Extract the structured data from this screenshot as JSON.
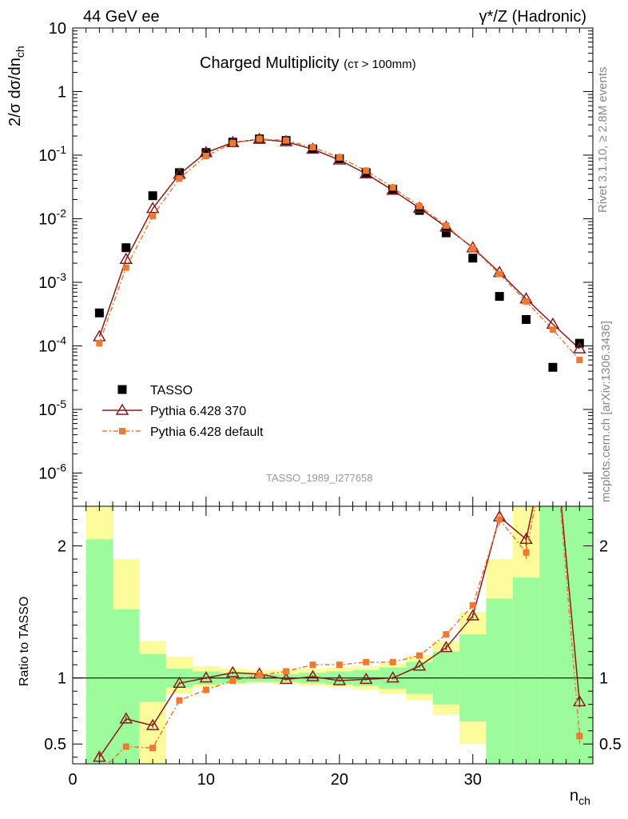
{
  "header": {
    "left": "44 GeV ee",
    "right": "γ*/Z (Hadronic)"
  },
  "side_text": {
    "rivet": "Rivet 3.1.10, ≥ 2.8M events",
    "mcplots": "mcplots.cern.ch [arXiv:1306.3436]"
  },
  "chart_data": [
    {
      "type": "scatter",
      "title": "Charged Multiplicity",
      "title_sub": "(cτ > 100mm)",
      "ylabel": "2/σ dσ/dn_ch",
      "ylabel_main": "2/σ dσ/dn",
      "ylabel_sub": "ch",
      "yscale": "log",
      "xlim": [
        0,
        39
      ],
      "ylim": [
        3e-07,
        10
      ],
      "ytick_labels": [
        "10",
        "1",
        "10^-1",
        "10^-2",
        "10^-3",
        "10^-4",
        "10^-5",
        "10^-6"
      ],
      "ytick_values": [
        10,
        1,
        0.1,
        0.01,
        0.001,
        0.0001,
        1e-05,
        1e-06
      ],
      "legend_position": "lower-left",
      "watermark": "TASSO_1989_I277658",
      "x": [
        2,
        4,
        6,
        8,
        10,
        12,
        14,
        16,
        18,
        20,
        22,
        24,
        26,
        28,
        30,
        32,
        34,
        36,
        38
      ],
      "series": [
        {
          "name": "TASSO",
          "color": "#000000",
          "marker": "square",
          "values": [
            0.00033,
            0.0035,
            0.023,
            0.053,
            0.11,
            0.16,
            0.18,
            0.17,
            0.125,
            0.088,
            0.053,
            0.029,
            0.0135,
            0.006,
            0.0024,
            0.0006,
            0.00026,
            4.6e-05,
            0.00011
          ]
        },
        {
          "name": "Pythia 6.428 370",
          "color": "#8b1a1a",
          "marker": "open-triangle",
          "values": [
            0.00014,
            0.0023,
            0.0145,
            0.05,
            0.11,
            0.158,
            0.178,
            0.163,
            0.124,
            0.084,
            0.051,
            0.028,
            0.0147,
            0.0074,
            0.0035,
            0.00143,
            0.00055,
            0.00022,
            9e-05
          ]
        },
        {
          "name": "Pythia 6.428 default",
          "color": "#f07830",
          "marker": "square",
          "values": [
            0.00011,
            0.0017,
            0.011,
            0.043,
            0.097,
            0.155,
            0.18,
            0.17,
            0.133,
            0.092,
            0.057,
            0.031,
            0.0158,
            0.0078,
            0.0034,
            0.00135,
            0.0005,
            0.00018,
            6e-05
          ]
        }
      ]
    },
    {
      "type": "line",
      "ylabel": "Ratio to TASSO",
      "xlabel": "n_ch",
      "xlabel_main": "n",
      "xlabel_sub": "ch",
      "xlim": [
        0,
        39
      ],
      "ylim": [
        0.35,
        2.3
      ],
      "xtick_labels": [
        "0",
        "10",
        "20",
        "30"
      ],
      "xtick_values": [
        0,
        10,
        20,
        30
      ],
      "ytick_labels": [
        "0.5",
        "1",
        "2"
      ],
      "ytick_values": [
        0.5,
        1,
        2
      ],
      "reference_line": 1,
      "bands": [
        {
          "name": "stat",
          "color": "#9cfc9c",
          "bins": [
            {
              "lo": 1,
              "hi": 3,
              "min": 0.35,
              "max": 2.05
            },
            {
              "lo": 3,
              "hi": 5,
              "min": 0.35,
              "max": 1.52
            },
            {
              "lo": 5,
              "hi": 7,
              "min": 0.82,
              "max": 1.18
            },
            {
              "lo": 7,
              "hi": 9,
              "min": 0.93,
              "max": 1.07
            },
            {
              "lo": 9,
              "hi": 11,
              "min": 0.95,
              "max": 1.05
            },
            {
              "lo": 11,
              "hi": 13,
              "min": 0.96,
              "max": 1.04
            },
            {
              "lo": 13,
              "hi": 15,
              "min": 0.97,
              "max": 1.03
            },
            {
              "lo": 15,
              "hi": 17,
              "min": 0.97,
              "max": 1.03
            },
            {
              "lo": 17,
              "hi": 19,
              "min": 0.96,
              "max": 1.04
            },
            {
              "lo": 19,
              "hi": 21,
              "min": 0.95,
              "max": 1.05
            },
            {
              "lo": 21,
              "hi": 23,
              "min": 0.94,
              "max": 1.06
            },
            {
              "lo": 23,
              "hi": 25,
              "min": 0.92,
              "max": 1.08
            },
            {
              "lo": 25,
              "hi": 27,
              "min": 0.88,
              "max": 1.12
            },
            {
              "lo": 27,
              "hi": 29,
              "min": 0.8,
              "max": 1.2
            },
            {
              "lo": 29,
              "hi": 31,
              "min": 0.67,
              "max": 1.33
            },
            {
              "lo": 31,
              "hi": 33,
              "min": 0.35,
              "max": 1.6
            },
            {
              "lo": 33,
              "hi": 35,
              "min": 0.35,
              "max": 1.76
            },
            {
              "lo": 35,
              "hi": 37,
              "min": 0.35,
              "max": 2.3
            },
            {
              "lo": 37,
              "hi": 39,
              "min": 0.35,
              "max": 2.3
            }
          ]
        },
        {
          "name": "total",
          "color": "#fcfc9c",
          "bins": [
            {
              "lo": 1,
              "hi": 3,
              "min": 0.35,
              "max": 2.3
            },
            {
              "lo": 3,
              "hi": 5,
              "min": 0.35,
              "max": 1.9
            },
            {
              "lo": 5,
              "hi": 7,
              "min": 0.35,
              "max": 1.28
            },
            {
              "lo": 7,
              "hi": 9,
              "min": 0.88,
              "max": 1.16
            },
            {
              "lo": 9,
              "hi": 11,
              "min": 0.93,
              "max": 1.09
            },
            {
              "lo": 11,
              "hi": 13,
              "min": 0.95,
              "max": 1.07
            },
            {
              "lo": 13,
              "hi": 15,
              "min": 0.96,
              "max": 1.06
            },
            {
              "lo": 15,
              "hi": 17,
              "min": 0.95,
              "max": 1.06
            },
            {
              "lo": 17,
              "hi": 19,
              "min": 0.94,
              "max": 1.07
            },
            {
              "lo": 19,
              "hi": 21,
              "min": 0.93,
              "max": 1.08
            },
            {
              "lo": 21,
              "hi": 23,
              "min": 0.91,
              "max": 1.09
            },
            {
              "lo": 23,
              "hi": 25,
              "min": 0.88,
              "max": 1.11
            },
            {
              "lo": 25,
              "hi": 27,
              "min": 0.83,
              "max": 1.17
            },
            {
              "lo": 27,
              "hi": 29,
              "min": 0.72,
              "max": 1.28
            },
            {
              "lo": 29,
              "hi": 31,
              "min": 0.5,
              "max": 1.5
            },
            {
              "lo": 31,
              "hi": 33,
              "min": 0.35,
              "max": 1.9
            },
            {
              "lo": 33,
              "hi": 35,
              "min": 0.35,
              "max": 2.3
            },
            {
              "lo": 35,
              "hi": 37,
              "min": 0.35,
              "max": 2.3
            },
            {
              "lo": 37,
              "hi": 39,
              "min": 0.35,
              "max": 2.3
            }
          ]
        }
      ],
      "series": [
        {
          "name": "Pythia 6.428 370",
          "color": "#8b1a1a",
          "marker": "open-triangle",
          "x": [
            2,
            4,
            6,
            8,
            10,
            12,
            14,
            16,
            18,
            20,
            22,
            24,
            26,
            28,
            30,
            32,
            34,
            36,
            38
          ],
          "values": [
            0.4,
            0.69,
            0.64,
            0.96,
            1.0,
            1.04,
            1.03,
            0.99,
            1.01,
            0.98,
            0.99,
            1.0,
            1.09,
            1.23,
            1.47,
            2.22,
            2.05,
            3.0,
            0.82
          ],
          "errors": [
            0.03,
            0.02,
            0.02,
            0.01,
            0.01,
            0.01,
            0.01,
            0.01,
            0.01,
            0.01,
            0.01,
            0.01,
            0.01,
            0.02,
            0.02,
            0.05,
            0.05,
            0.1,
            0.04
          ]
        },
        {
          "name": "Pythia 6.428 default",
          "color": "#f07830",
          "marker": "square",
          "x": [
            2,
            4,
            6,
            8,
            10,
            12,
            14,
            16,
            18,
            20,
            22,
            24,
            26,
            28,
            30,
            32,
            34,
            36,
            38
          ],
          "values": [
            0.29,
            0.48,
            0.47,
            0.83,
            0.91,
            0.98,
            1.02,
            1.05,
            1.1,
            1.1,
            1.12,
            1.12,
            1.17,
            1.33,
            1.55,
            2.2,
            1.95,
            3.0,
            0.56
          ],
          "errors": [
            0.02,
            0.02,
            0.02,
            0.01,
            0.01,
            0.01,
            0.01,
            0.01,
            0.01,
            0.01,
            0.01,
            0.01,
            0.01,
            0.02,
            0.02,
            0.05,
            0.05,
            0.1,
            0.06
          ]
        }
      ]
    }
  ]
}
